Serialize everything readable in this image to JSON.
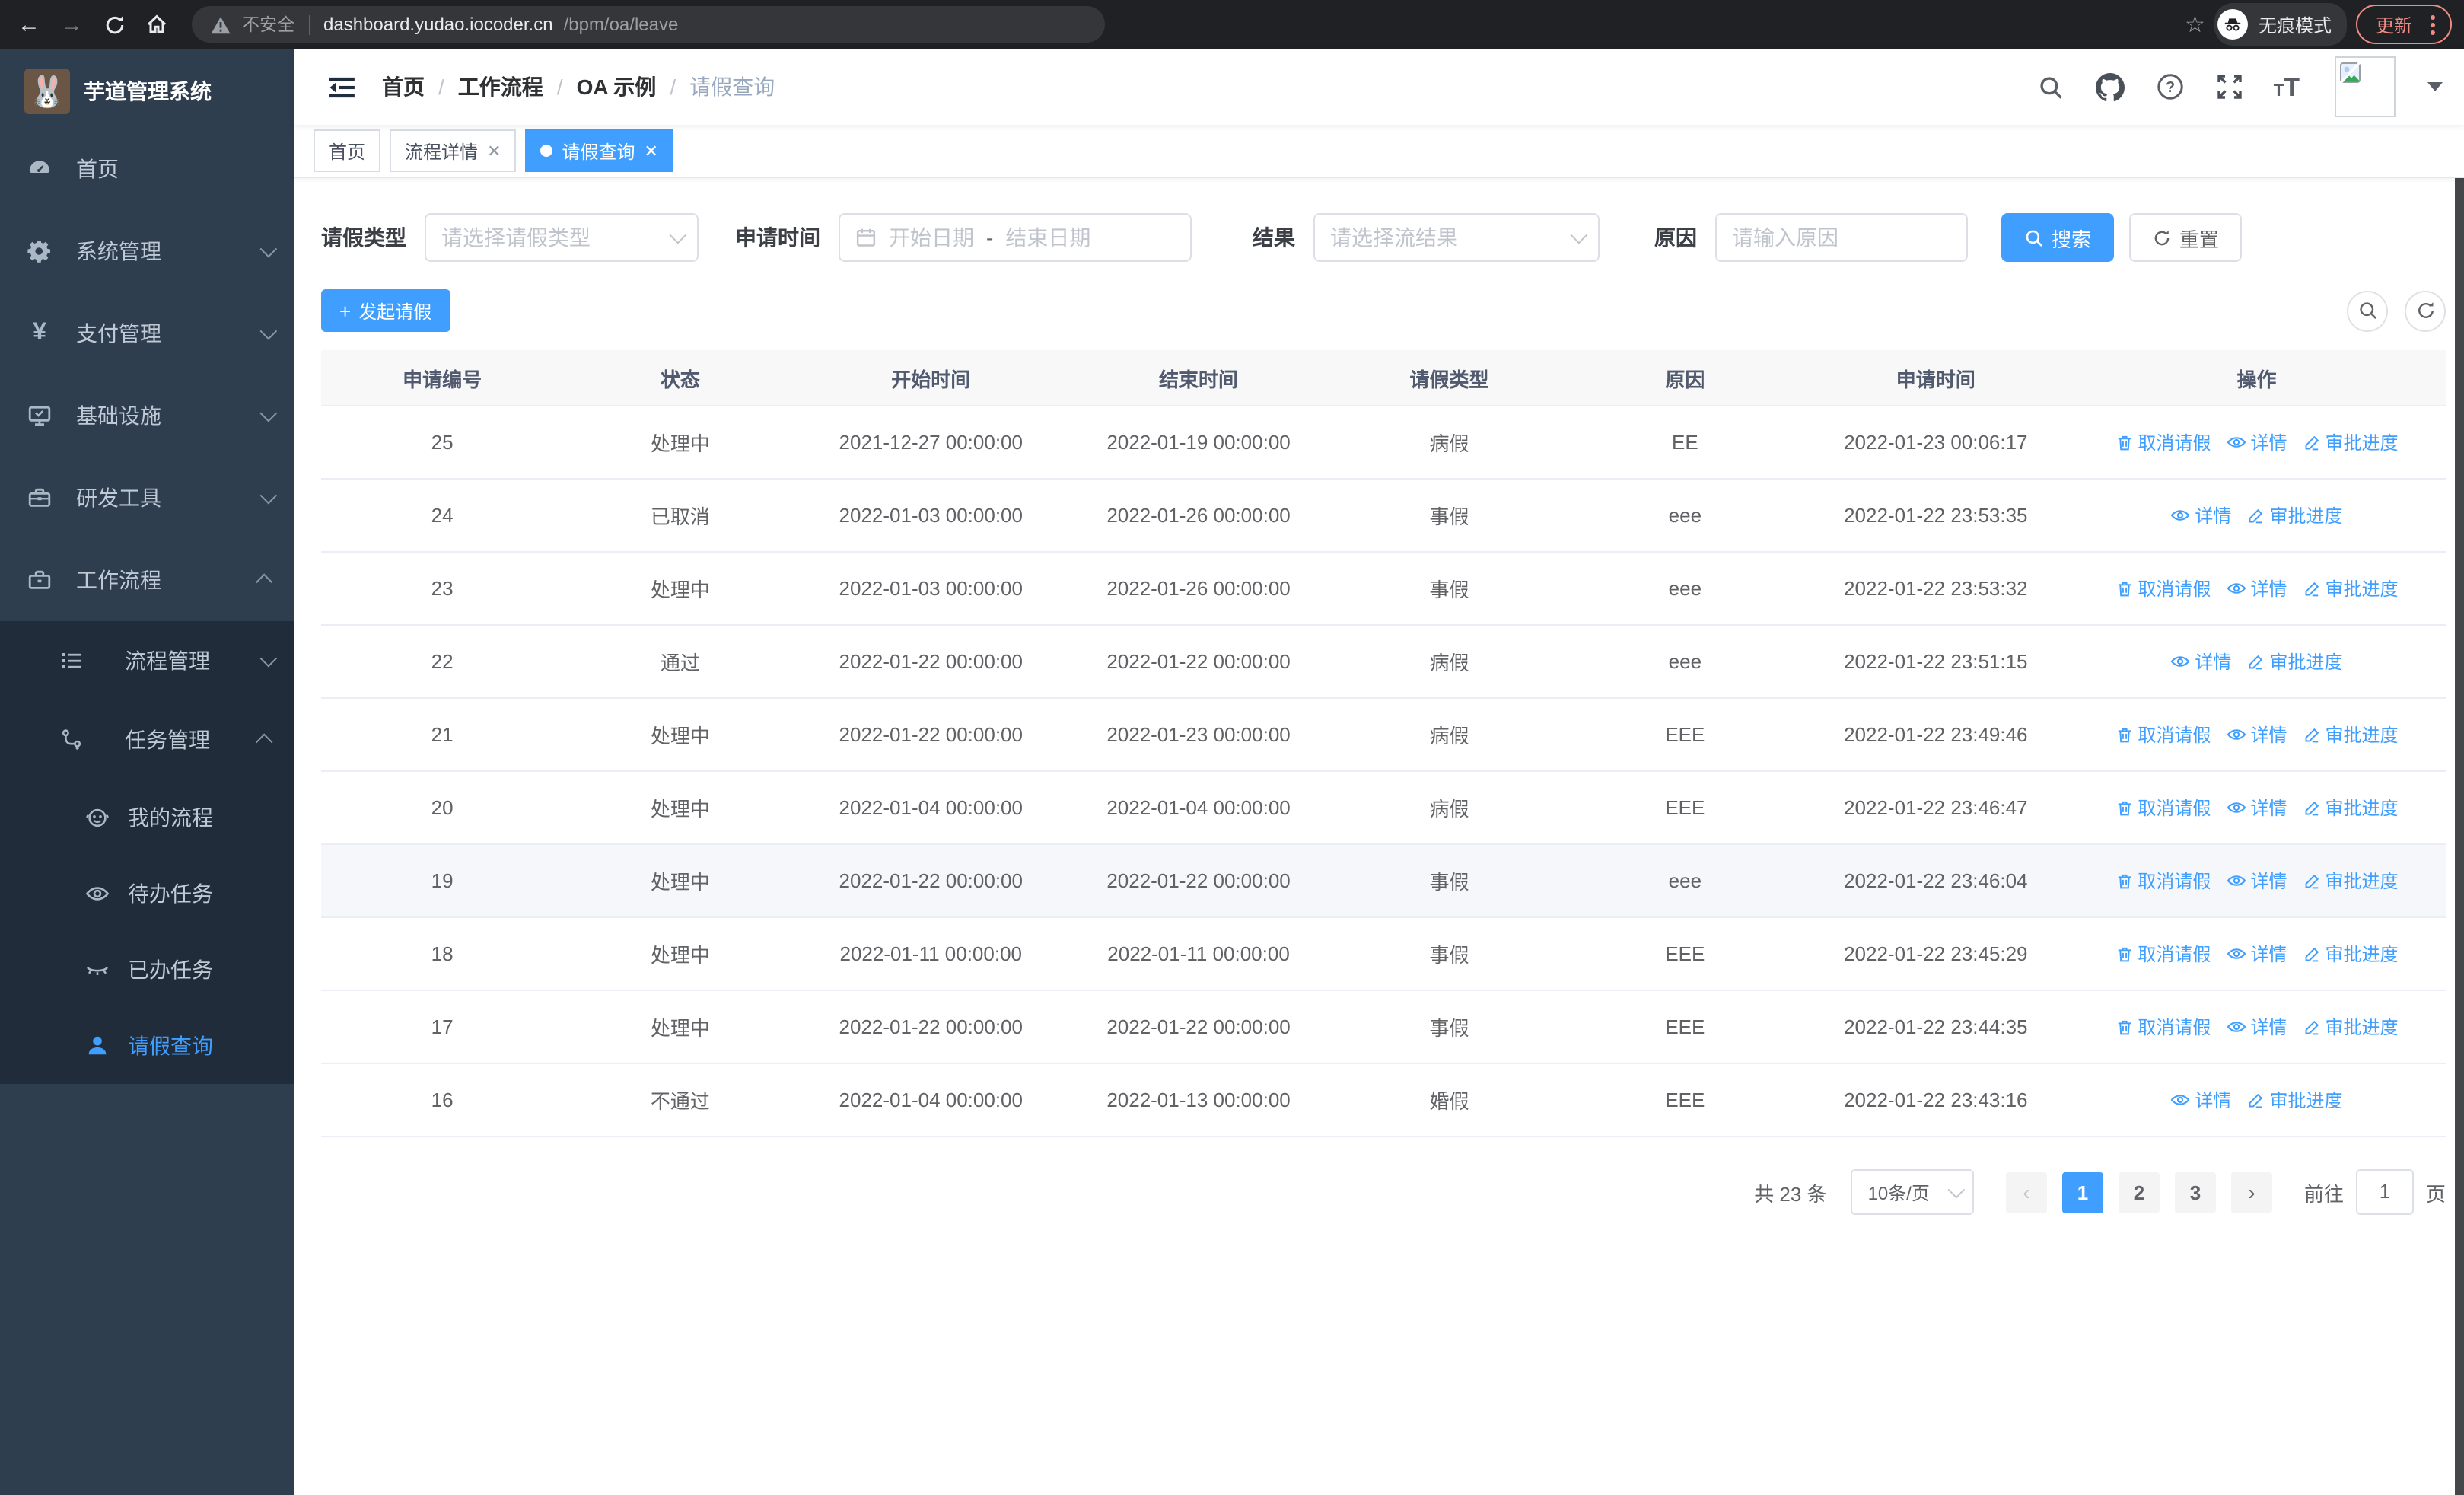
{
  "colors": {
    "accent": "#409eff",
    "sidebar_bg": "#2f3e4f",
    "submenu_bg": "#212c3b",
    "update_red": "#f28b82"
  },
  "browser": {
    "security_warning": "不安全",
    "url_host": "dashboard.yudao.iocoder.cn",
    "url_path": "/bpm/oa/leave",
    "incognito_label": "无痕模式",
    "update_label": "更新"
  },
  "sidebar": {
    "title": "芋道管理系统",
    "items": [
      {
        "label": "首页",
        "icon": "dashboard-icon",
        "chevron": "none",
        "active": false
      },
      {
        "label": "系统管理",
        "icon": "gear-icon",
        "chevron": "down",
        "active": false
      },
      {
        "label": "支付管理",
        "icon": "yen-icon",
        "chevron": "down",
        "active": false
      },
      {
        "label": "基础设施",
        "icon": "monitor-icon",
        "chevron": "down",
        "active": false
      },
      {
        "label": "研发工具",
        "icon": "toolbox-icon",
        "chevron": "down",
        "active": false
      },
      {
        "label": "工作流程",
        "icon": "briefcase-icon",
        "chevron": "up",
        "active": false
      }
    ],
    "submenu": [
      {
        "label": "流程管理",
        "icon": "list-icon",
        "chevron": "down",
        "level": 1,
        "active": false
      },
      {
        "label": "任务管理",
        "icon": "flow-icon",
        "chevron": "up",
        "level": 1,
        "active": false
      },
      {
        "label": "我的流程",
        "icon": "robot-icon",
        "chevron": "none",
        "level": 2,
        "active": false
      },
      {
        "label": "待办任务",
        "icon": "eye-icon",
        "chevron": "none",
        "level": 2,
        "active": false
      },
      {
        "label": "已办任务",
        "icon": "eye-closed-icon",
        "chevron": "none",
        "level": 2,
        "active": false
      },
      {
        "label": "请假查询",
        "icon": "user-icon",
        "chevron": "none",
        "level": 2,
        "active": true
      }
    ]
  },
  "navbar": {
    "breadcrumb": [
      {
        "label": "首页",
        "current": false
      },
      {
        "label": "工作流程",
        "current": false
      },
      {
        "label": "OA 示例",
        "current": false
      },
      {
        "label": "请假查询",
        "current": true
      }
    ]
  },
  "tabs": [
    {
      "label": "首页",
      "closable": false,
      "active": false
    },
    {
      "label": "流程详情",
      "closable": true,
      "active": false
    },
    {
      "label": "请假查询",
      "closable": true,
      "active": true
    }
  ],
  "filters": {
    "leave_type_label": "请假类型",
    "leave_type_placeholder": "请选择请假类型",
    "apply_time_label": "申请时间",
    "start_date_placeholder": "开始日期",
    "range_separator": "-",
    "end_date_placeholder": "结束日期",
    "result_label": "结果",
    "result_placeholder": "请选择流结果",
    "reason_label": "原因",
    "reason_placeholder": "请输入原因",
    "search_label": "搜索",
    "reset_label": "重置"
  },
  "toolbar": {
    "create_label": "发起请假"
  },
  "table": {
    "columns": [
      "申请编号",
      "状态",
      "开始时间",
      "结束时间",
      "请假类型",
      "原因",
      "申请时间",
      "操作"
    ],
    "action_labels": {
      "cancel": "取消请假",
      "detail": "详情",
      "progress": "审批进度"
    },
    "rows": [
      {
        "id": "25",
        "status": "处理中",
        "start": "2021-12-27 00:00:00",
        "end": "2022-01-19 00:00:00",
        "type": "病假",
        "reason": "EE",
        "applied": "2022-01-23 00:06:17",
        "cancellable": true,
        "highlighted": false
      },
      {
        "id": "24",
        "status": "已取消",
        "start": "2022-01-03 00:00:00",
        "end": "2022-01-26 00:00:00",
        "type": "事假",
        "reason": "eee",
        "applied": "2022-01-22 23:53:35",
        "cancellable": false,
        "highlighted": false
      },
      {
        "id": "23",
        "status": "处理中",
        "start": "2022-01-03 00:00:00",
        "end": "2022-01-26 00:00:00",
        "type": "事假",
        "reason": "eee",
        "applied": "2022-01-22 23:53:32",
        "cancellable": true,
        "highlighted": false
      },
      {
        "id": "22",
        "status": "通过",
        "start": "2022-01-22 00:00:00",
        "end": "2022-01-22 00:00:00",
        "type": "病假",
        "reason": "eee",
        "applied": "2022-01-22 23:51:15",
        "cancellable": false,
        "highlighted": false
      },
      {
        "id": "21",
        "status": "处理中",
        "start": "2022-01-22 00:00:00",
        "end": "2022-01-23 00:00:00",
        "type": "病假",
        "reason": "EEE",
        "applied": "2022-01-22 23:49:46",
        "cancellable": true,
        "highlighted": false
      },
      {
        "id": "20",
        "status": "处理中",
        "start": "2022-01-04 00:00:00",
        "end": "2022-01-04 00:00:00",
        "type": "病假",
        "reason": "EEE",
        "applied": "2022-01-22 23:46:47",
        "cancellable": true,
        "highlighted": false
      },
      {
        "id": "19",
        "status": "处理中",
        "start": "2022-01-22 00:00:00",
        "end": "2022-01-22 00:00:00",
        "type": "事假",
        "reason": "eee",
        "applied": "2022-01-22 23:46:04",
        "cancellable": true,
        "highlighted": true
      },
      {
        "id": "18",
        "status": "处理中",
        "start": "2022-01-11 00:00:00",
        "end": "2022-01-11 00:00:00",
        "type": "事假",
        "reason": "EEE",
        "applied": "2022-01-22 23:45:29",
        "cancellable": true,
        "highlighted": false
      },
      {
        "id": "17",
        "status": "处理中",
        "start": "2022-01-22 00:00:00",
        "end": "2022-01-22 00:00:00",
        "type": "事假",
        "reason": "EEE",
        "applied": "2022-01-22 23:44:35",
        "cancellable": true,
        "highlighted": false
      },
      {
        "id": "16",
        "status": "不通过",
        "start": "2022-01-04 00:00:00",
        "end": "2022-01-13 00:00:00",
        "type": "婚假",
        "reason": "EEE",
        "applied": "2022-01-22 23:43:16",
        "cancellable": false,
        "highlighted": false
      }
    ]
  },
  "pagination": {
    "total_label": "共 23 条",
    "page_size": "10条/页",
    "pages": [
      "1",
      "2",
      "3"
    ],
    "current_page": "1",
    "goto_label": "前往",
    "goto_value": "1",
    "page_unit": "页"
  }
}
